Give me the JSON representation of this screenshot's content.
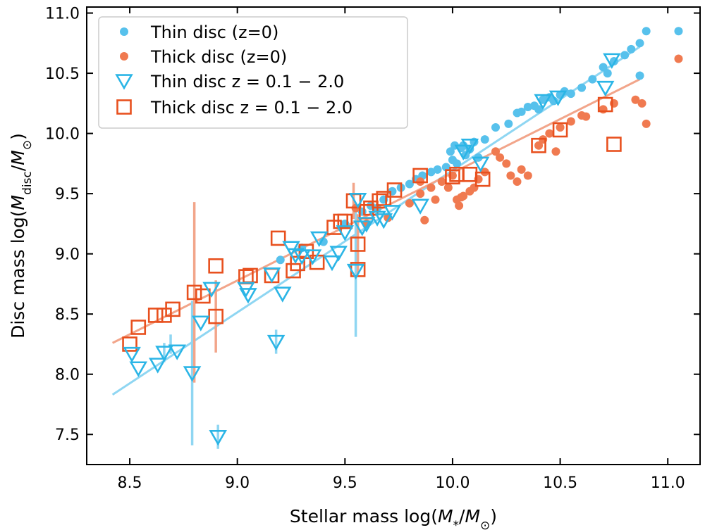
{
  "chart_data": {
    "type": "scatter",
    "xlabel": "Stellar mass log(M*/M⊙)",
    "ylabel": "Disc mass log(Mdisc/M⊙)",
    "xlim": [
      8.3,
      11.15
    ],
    "ylim": [
      7.25,
      11.05
    ],
    "xticks": [
      "8.5",
      "9.0",
      "9.5",
      "10.0",
      "10.5",
      "11.0"
    ],
    "yticks": [
      "7.5",
      "8.0",
      "8.5",
      "9.0",
      "9.5",
      "10.0",
      "10.5",
      "11.0"
    ],
    "grid": false,
    "legend_position": "top-left",
    "colors": {
      "thin": "#2bb5e6",
      "thick": "#e8501e",
      "thin_z0": "#57c1ec",
      "thick_z0": "#f07a50",
      "thin_fit": "#8fd6f2",
      "thick_fit": "#f2a58a"
    },
    "series": [
      {
        "name": "Thin disc (z=0)",
        "marker": "dot",
        "points": [
          [
            9.72,
            9.52
          ],
          [
            9.76,
            9.55
          ],
          [
            9.8,
            9.58
          ],
          [
            9.83,
            9.62
          ],
          [
            9.86,
            9.65
          ],
          [
            9.9,
            9.68
          ],
          [
            9.93,
            9.7
          ],
          [
            9.97,
            9.72
          ],
          [
            9.99,
            9.85
          ],
          [
            10.0,
            9.78
          ],
          [
            10.01,
            9.9
          ],
          [
            10.02,
            9.75
          ],
          [
            10.04,
            9.88
          ],
          [
            10.05,
            9.9
          ],
          [
            10.06,
            9.82
          ],
          [
            10.08,
            9.87
          ],
          [
            10.1,
            9.93
          ],
          [
            10.12,
            9.8
          ],
          [
            10.15,
            9.95
          ],
          [
            10.2,
            10.05
          ],
          [
            10.26,
            10.08
          ],
          [
            10.3,
            10.17
          ],
          [
            10.32,
            10.18
          ],
          [
            10.35,
            10.22
          ],
          [
            10.38,
            10.23
          ],
          [
            10.4,
            10.2
          ],
          [
            10.42,
            10.28
          ],
          [
            10.45,
            10.3
          ],
          [
            10.47,
            10.27
          ],
          [
            10.5,
            10.32
          ],
          [
            10.52,
            10.35
          ],
          [
            10.55,
            10.33
          ],
          [
            10.6,
            10.38
          ],
          [
            10.65,
            10.45
          ],
          [
            10.7,
            10.55
          ],
          [
            10.72,
            10.5
          ],
          [
            10.75,
            10.6
          ],
          [
            10.8,
            10.65
          ],
          [
            10.83,
            10.7
          ],
          [
            10.87,
            10.75
          ],
          [
            10.87,
            10.48
          ],
          [
            10.9,
            10.85
          ],
          [
            11.05,
            10.85
          ],
          [
            9.58,
            9.35
          ],
          [
            9.62,
            9.4
          ],
          [
            9.65,
            9.38
          ],
          [
            9.68,
            9.45
          ],
          [
            9.5,
            9.25
          ],
          [
            9.2,
            8.95
          ],
          [
            9.3,
            9.05
          ],
          [
            9.4,
            9.1
          ]
        ]
      },
      {
        "name": "Thick disc (z=0)",
        "marker": "dot",
        "points": [
          [
            9.6,
            9.25
          ],
          [
            9.7,
            9.3
          ],
          [
            9.8,
            9.42
          ],
          [
            9.85,
            9.5
          ],
          [
            9.9,
            9.55
          ],
          [
            9.92,
            9.45
          ],
          [
            9.95,
            9.6
          ],
          [
            9.98,
            9.55
          ],
          [
            10.0,
            9.65
          ],
          [
            10.02,
            9.45
          ],
          [
            10.03,
            9.4
          ],
          [
            10.05,
            9.48
          ],
          [
            10.08,
            9.52
          ],
          [
            10.1,
            9.55
          ],
          [
            10.12,
            9.62
          ],
          [
            10.15,
            9.68
          ],
          [
            10.2,
            9.85
          ],
          [
            10.22,
            9.8
          ],
          [
            10.25,
            9.75
          ],
          [
            10.27,
            9.65
          ],
          [
            10.3,
            9.6
          ],
          [
            10.32,
            9.7
          ],
          [
            10.35,
            9.65
          ],
          [
            10.4,
            9.9
          ],
          [
            10.42,
            9.95
          ],
          [
            10.45,
            10.0
          ],
          [
            10.48,
            9.85
          ],
          [
            10.5,
            10.05
          ],
          [
            10.55,
            10.1
          ],
          [
            10.6,
            10.15
          ],
          [
            10.62,
            10.14
          ],
          [
            10.7,
            10.2
          ],
          [
            10.75,
            10.25
          ],
          [
            10.85,
            10.28
          ],
          [
            10.88,
            10.25
          ],
          [
            10.9,
            10.08
          ],
          [
            11.05,
            10.62
          ],
          [
            9.85,
            9.6
          ],
          [
            9.55,
            9.38
          ],
          [
            9.87,
            9.28
          ],
          [
            10.04,
            9.47
          ]
        ]
      },
      {
        "name": "Thin disc z = 0.1 − 2.0",
        "marker": "triangle-down",
        "points": [
          [
            8.51,
            8.17
          ],
          [
            8.54,
            8.05
          ],
          [
            8.63,
            8.08
          ],
          [
            8.66,
            8.18
          ],
          [
            8.72,
            8.19
          ],
          [
            8.79,
            8.01
          ],
          [
            8.83,
            8.43
          ],
          [
            8.88,
            8.71
          ],
          [
            8.91,
            7.48
          ],
          [
            9.04,
            8.71
          ],
          [
            9.05,
            8.66
          ],
          [
            9.16,
            8.83
          ],
          [
            9.18,
            8.27
          ],
          [
            9.21,
            8.67
          ],
          [
            9.25,
            9.05
          ],
          [
            9.27,
            8.99
          ],
          [
            9.3,
            8.98
          ],
          [
            9.35,
            8.98
          ],
          [
            9.38,
            9.13
          ],
          [
            9.44,
            8.93
          ],
          [
            9.47,
            9.01
          ],
          [
            9.5,
            9.18
          ],
          [
            9.55,
            8.86
          ],
          [
            9.56,
            9.45
          ],
          [
            9.58,
            9.22
          ],
          [
            9.6,
            9.25
          ],
          [
            9.65,
            9.3
          ],
          [
            9.68,
            9.28
          ],
          [
            9.72,
            9.35
          ],
          [
            9.85,
            9.4
          ],
          [
            10.05,
            9.85
          ],
          [
            10.08,
            9.9
          ],
          [
            10.13,
            9.75
          ],
          [
            10.42,
            10.27
          ],
          [
            10.49,
            10.3
          ],
          [
            10.71,
            10.38
          ],
          [
            10.74,
            10.61
          ]
        ],
        "error_bars": [
          [
            8.66,
            8.18,
            0.08
          ],
          [
            8.69,
            8.25,
            0.08
          ],
          [
            8.79,
            8.01,
            0.6
          ],
          [
            8.91,
            7.48,
            0.1
          ],
          [
            9.18,
            8.27,
            0.1
          ],
          [
            9.55,
            8.86,
            0.55
          ]
        ]
      },
      {
        "name": "Thick disc z = 0.1 − 2.0",
        "marker": "square",
        "points": [
          [
            8.5,
            8.25
          ],
          [
            8.54,
            8.39
          ],
          [
            8.62,
            8.49
          ],
          [
            8.66,
            8.49
          ],
          [
            8.7,
            8.54
          ],
          [
            8.8,
            8.68
          ],
          [
            8.84,
            8.65
          ],
          [
            8.9,
            8.9
          ],
          [
            8.9,
            8.48
          ],
          [
            9.04,
            8.81
          ],
          [
            9.06,
            8.82
          ],
          [
            9.16,
            8.82
          ],
          [
            9.19,
            9.13
          ],
          [
            9.26,
            8.86
          ],
          [
            9.28,
            8.92
          ],
          [
            9.32,
            9.02
          ],
          [
            9.37,
            8.93
          ],
          [
            9.45,
            9.22
          ],
          [
            9.48,
            9.27
          ],
          [
            9.5,
            9.27
          ],
          [
            9.54,
            9.44
          ],
          [
            9.56,
            9.08
          ],
          [
            9.56,
            8.87
          ],
          [
            9.6,
            9.35
          ],
          [
            9.62,
            9.38
          ],
          [
            9.66,
            9.44
          ],
          [
            9.68,
            9.46
          ],
          [
            9.73,
            9.53
          ],
          [
            9.85,
            9.65
          ],
          [
            10.0,
            9.64
          ],
          [
            10.02,
            9.66
          ],
          [
            10.08,
            9.66
          ],
          [
            10.14,
            9.62
          ],
          [
            10.4,
            9.9
          ],
          [
            10.5,
            10.03
          ],
          [
            10.71,
            10.24
          ],
          [
            10.75,
            9.91
          ]
        ],
        "error_bars": [
          [
            8.8,
            8.68,
            0.75
          ],
          [
            8.9,
            8.48,
            0.3
          ],
          [
            9.56,
            9.08,
            0.25
          ],
          [
            9.54,
            9.44,
            0.15
          ]
        ]
      }
    ],
    "fit_lines": [
      {
        "series": "thin",
        "x": [
          8.42,
          10.87
        ],
        "y": [
          7.83,
          10.72
        ]
      },
      {
        "series": "thick",
        "x": [
          8.42,
          10.87
        ],
        "y": [
          8.26,
          10.45
        ]
      }
    ]
  }
}
